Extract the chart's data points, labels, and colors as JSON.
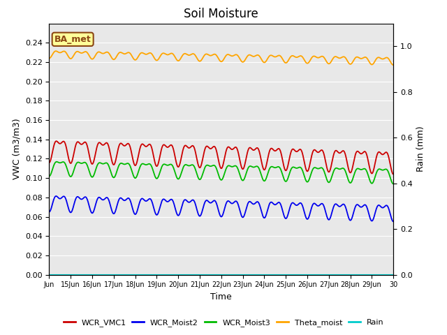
{
  "title": "Soil Moisture",
  "xlabel": "Time",
  "ylabel_left": "VWC (m3/m3)",
  "ylabel_right": "Rain (mm)",
  "ylim_left": [
    0.0,
    0.26
  ],
  "ylim_right": [
    0.0,
    1.1
  ],
  "yticks_left": [
    0.0,
    0.02,
    0.04,
    0.06,
    0.08,
    0.1,
    0.12,
    0.14,
    0.16,
    0.18,
    0.2,
    0.22,
    0.24
  ],
  "yticks_right": [
    0.0,
    0.2,
    0.4,
    0.6,
    0.8,
    1.0
  ],
  "xtick_labels": [
    "Jun",
    "15Jun",
    "16Jun",
    "17Jun",
    "18Jun",
    "19Jun",
    "20Jun",
    "21Jun",
    "22Jun",
    "23Jun",
    "24Jun",
    "25Jun",
    "26Jun",
    "27Jun",
    "28Jun",
    "29Jun",
    "30"
  ],
  "bg_color": "#e8e8e8",
  "annotation_text": "BA_met",
  "annotation_bg": "#ffff99",
  "annotation_border": "#8b4513",
  "series": {
    "WCR_VMC1": {
      "color": "#cc0000",
      "base": 0.131,
      "amp1": 0.01,
      "amp2": 0.005,
      "trend": -0.012
    },
    "WCR_Moist2": {
      "color": "#0000ee",
      "base": 0.076,
      "amp1": 0.007,
      "amp2": 0.004,
      "trend": -0.01
    },
    "WCR_Moist3": {
      "color": "#00bb00",
      "base": 0.112,
      "amp1": 0.007,
      "amp2": 0.003,
      "trend": -0.008
    },
    "Theta_moist": {
      "color": "#ffa500",
      "base": 0.229,
      "amp1": 0.003,
      "amp2": 0.002,
      "trend": -0.007
    },
    "Rain": {
      "color": "#00cccc",
      "base": 0.0,
      "amp1": 0.0,
      "amp2": 0.0,
      "trend": 0.0
    }
  },
  "legend_entries": [
    "WCR_VMC1",
    "WCR_Moist2",
    "WCR_Moist3",
    "Theta_moist",
    "Rain"
  ],
  "legend_colors": [
    "#cc0000",
    "#0000ee",
    "#00bb00",
    "#ffa500",
    "#00cccc"
  ]
}
